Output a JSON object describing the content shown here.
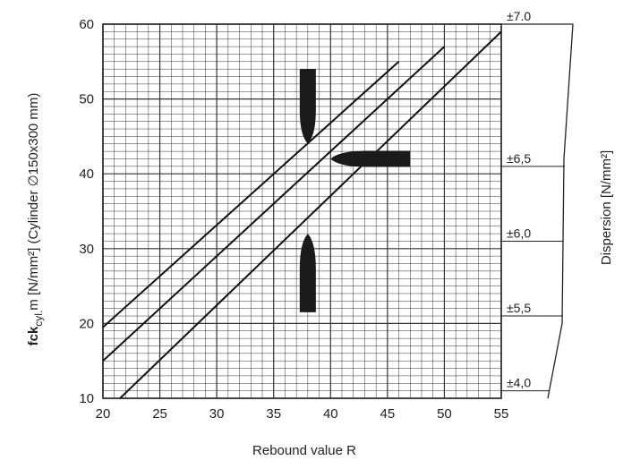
{
  "chart_data": {
    "type": "line",
    "xlabel": "Rebound value R",
    "ylabel_main": "fck",
    "ylabel_sub": "cyl.",
    "ylabel_rest": "m [N/mm²] (Cylinder ∅150x300 mm)",
    "y2label": "Dispersion [N/mm²]",
    "xlim": [
      20,
      55
    ],
    "ylim": [
      10,
      60
    ],
    "x_ticks": [
      "20",
      "25",
      "30",
      "35",
      "40",
      "45",
      "50",
      "55"
    ],
    "y_ticks": [
      "10",
      "20",
      "30",
      "40",
      "50",
      "60"
    ],
    "x_tick_values": [
      20,
      25,
      30,
      35,
      40,
      45,
      50,
      55
    ],
    "y_tick_values": [
      10,
      20,
      30,
      40,
      50,
      60
    ],
    "grid": true,
    "series": [
      {
        "x": [
          20,
          46
        ],
        "y": [
          19.5,
          55
        ]
      },
      {
        "x": [
          20,
          50
        ],
        "y": [
          15,
          57
        ]
      },
      {
        "x": [
          21.5,
          55
        ],
        "y": [
          10,
          59
        ]
      }
    ],
    "hammer_markers": [
      {
        "orientation": "vertical-top",
        "x": 38,
        "y_from": 54,
        "y_to": 44
      },
      {
        "orientation": "horizontal",
        "y": 42,
        "x_from": 40,
        "x_to": 47
      },
      {
        "orientation": "vertical-bottom",
        "x": 38,
        "y_from": 32,
        "y_to": 21.5
      }
    ],
    "dispersion_scale": [
      {
        "label": "±7.0",
        "y": 61
      },
      {
        "label": "±6,5",
        "y": 41
      },
      {
        "label": "±6,0",
        "y": 31
      },
      {
        "label": "±5,5",
        "y": 21
      },
      {
        "label": "±4,0",
        "y": 11
      }
    ]
  }
}
